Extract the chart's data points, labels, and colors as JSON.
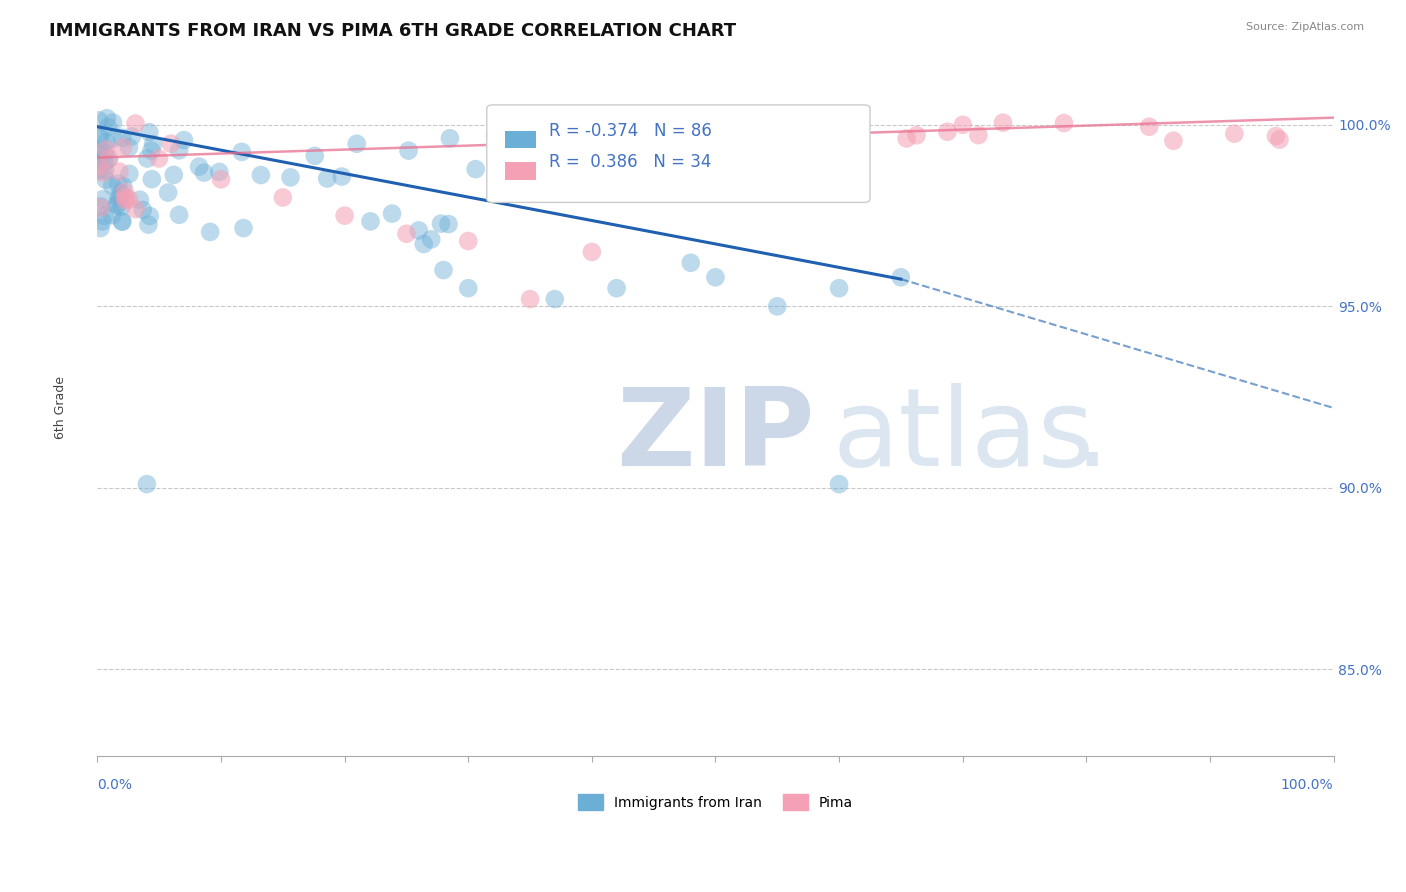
{
  "title": "IMMIGRANTS FROM IRAN VS PIMA 6TH GRADE CORRELATION CHART",
  "source_text": "Source: ZipAtlas.com",
  "ylabel": "6th Grade",
  "ytick_labels": [
    "85.0%",
    "90.0%",
    "95.0%",
    "100.0%"
  ],
  "ytick_values": [
    0.85,
    0.9,
    0.95,
    1.0
  ],
  "xlim": [
    0.0,
    1.0
  ],
  "ylim": [
    0.826,
    1.018
  ],
  "legend_blue_label": "Immigrants from Iran",
  "legend_pink_label": "Pima",
  "R_blue": -0.374,
  "N_blue": 86,
  "R_pink": 0.386,
  "N_pink": 34,
  "blue_color": "#6baed6",
  "pink_color": "#f4a0b5",
  "blue_line_color": "#2060b0",
  "pink_line_color": "#e87090",
  "grid_color": "#bbbbbb",
  "background_color": "#ffffff",
  "title_fontsize": 13,
  "axis_label_fontsize": 9,
  "tick_fontsize": 10,
  "legend_fontsize": 12,
  "blue_trendline": {
    "x_solid_start": 0.0,
    "y_solid_start": 0.9995,
    "x_solid_end": 0.65,
    "y_solid_end": 0.9575,
    "x_dash_start": 0.65,
    "y_dash_start": 0.9575,
    "x_dash_end": 1.0,
    "y_dash_end": 0.922
  },
  "pink_trendline": {
    "x_start": 0.0,
    "y_start": 0.991,
    "x_end": 1.0,
    "y_end": 1.002
  },
  "dashed_gridlines": [
    1.0,
    0.95,
    0.9,
    0.85
  ],
  "dot_size": 180,
  "seed": 99
}
